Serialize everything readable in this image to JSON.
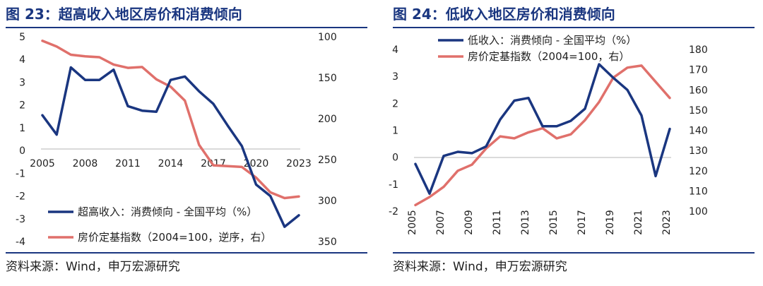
{
  "colors": {
    "heading": "#1a3680",
    "navy_series": "#1a3680",
    "red_series": "#e0706b"
  },
  "charts": [
    {
      "title": "图 23：超高收入地区房价和消费倾向",
      "source": "资料来源：Wind，申万宏源研究",
      "x_ticks": [
        "2005",
        "2008",
        "2011",
        "2014",
        "2017",
        "2020",
        "2023"
      ],
      "left_ticks": [
        "-4",
        "-3",
        "-2",
        "-1",
        "0",
        "1",
        "2",
        "3",
        "4",
        "5"
      ],
      "right_ticks": [
        "100",
        "150",
        "200",
        "250",
        "300",
        "350"
      ],
      "legend": [
        "超高收入：消费倾向 - 全国平均（%）",
        "房价定基指数（2004=100，逆序，右）"
      ]
    },
    {
      "title": "图 24：低收入地区房价和消费倾向",
      "source": "资料来源：Wind，申万宏源研究",
      "x_ticks": [
        "2005",
        "2007",
        "2009",
        "2011",
        "2013",
        "2015",
        "2017",
        "2019",
        "2021",
        "2023"
      ],
      "left_ticks": [
        "-2",
        "-1",
        "0",
        "1",
        "2",
        "3",
        "4"
      ],
      "right_ticks": [
        "100",
        "110",
        "120",
        "130",
        "140",
        "150",
        "160",
        "170",
        "180"
      ],
      "legend": [
        "低收入：消费倾向 - 全国平均（%）",
        "房价定基指数（2004=100，右）"
      ]
    }
  ],
  "chart_data": [
    {
      "type": "line",
      "x": [
        2005,
        2006,
        2007,
        2008,
        2009,
        2010,
        2011,
        2012,
        2013,
        2014,
        2015,
        2016,
        2017,
        2018,
        2019,
        2020,
        2021,
        2022,
        2023
      ],
      "series": [
        {
          "name": "超高收入：消费倾向 - 全国平均（%）",
          "axis": "left",
          "values": [
            1.55,
            0.7,
            3.65,
            3.1,
            3.1,
            3.55,
            1.95,
            1.75,
            1.7,
            3.1,
            3.25,
            2.6,
            2.05,
            1.1,
            0.2,
            -1.5,
            -2.0,
            -3.35,
            -2.85
          ]
        },
        {
          "name": "房价定基指数（2004=100，逆序，右）",
          "axis": "right",
          "values": [
            105,
            112,
            122,
            124,
            125,
            134,
            138,
            137,
            152,
            161,
            178,
            232,
            257,
            258,
            259,
            272,
            290,
            297,
            295
          ]
        }
      ],
      "left_ylim": [
        -4,
        5
      ],
      "right_ylim": [
        100,
        350
      ],
      "right_axis_inverted": true,
      "legend_position": "bottom-center"
    },
    {
      "type": "line",
      "x": [
        2005,
        2006,
        2007,
        2008,
        2009,
        2010,
        2011,
        2012,
        2013,
        2014,
        2015,
        2016,
        2017,
        2018,
        2019,
        2020,
        2021,
        2022,
        2023
      ],
      "series": [
        {
          "name": "低收入：消费倾向 - 全国平均（%）",
          "axis": "left",
          "values": [
            -0.25,
            -1.35,
            0.05,
            0.2,
            0.15,
            0.4,
            1.4,
            2.1,
            2.2,
            1.15,
            1.15,
            1.35,
            1.8,
            3.45,
            2.95,
            2.5,
            1.55,
            -0.7,
            1.05
          ]
        },
        {
          "name": "房价定基指数（2004=100，右）",
          "axis": "right",
          "values": [
            103,
            107,
            112,
            120,
            123,
            131,
            137,
            136,
            139,
            141,
            136,
            138,
            145,
            154,
            166,
            171,
            172,
            164,
            156
          ]
        }
      ],
      "left_ylim": [
        -2,
        4
      ],
      "right_ylim": [
        100,
        180
      ],
      "legend_position": "top-left"
    }
  ]
}
